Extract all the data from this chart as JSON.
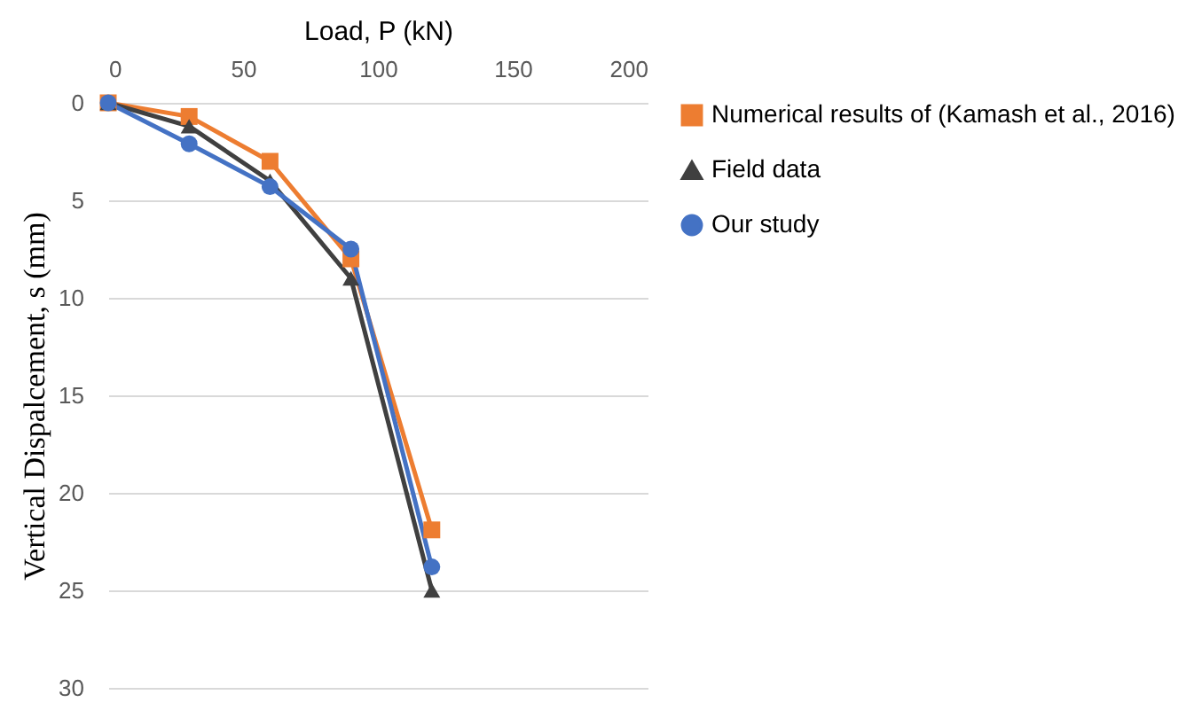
{
  "chart_data": {
    "type": "line",
    "xlabel": "Load, P (kN)",
    "ylabel": "Vertical Dispalcement, s (mm)",
    "x": [
      0,
      30,
      60,
      90,
      120
    ],
    "xlim": [
      0,
      200
    ],
    "xticks": [
      0,
      50,
      100,
      150,
      200
    ],
    "ylim": [
      30,
      0
    ],
    "yticks": [
      0,
      5,
      10,
      15,
      20,
      25,
      30
    ],
    "grid": "y",
    "legend": "right",
    "line_style": "solid",
    "series": [
      {
        "name": "Numerical results of (Kamash et al., 2016)",
        "color": "#ed7d31",
        "marker": "square",
        "values": [
          0,
          0.7,
          3,
          8,
          21.9
        ]
      },
      {
        "name": "Field data",
        "color": "#404040",
        "marker": "triangle",
        "values": [
          0,
          1.2,
          4,
          9,
          25
        ]
      },
      {
        "name": "Our study",
        "color": "#4472c4",
        "marker": "circle",
        "values": [
          0,
          2.1,
          4.3,
          7.5,
          23.8
        ]
      }
    ]
  }
}
